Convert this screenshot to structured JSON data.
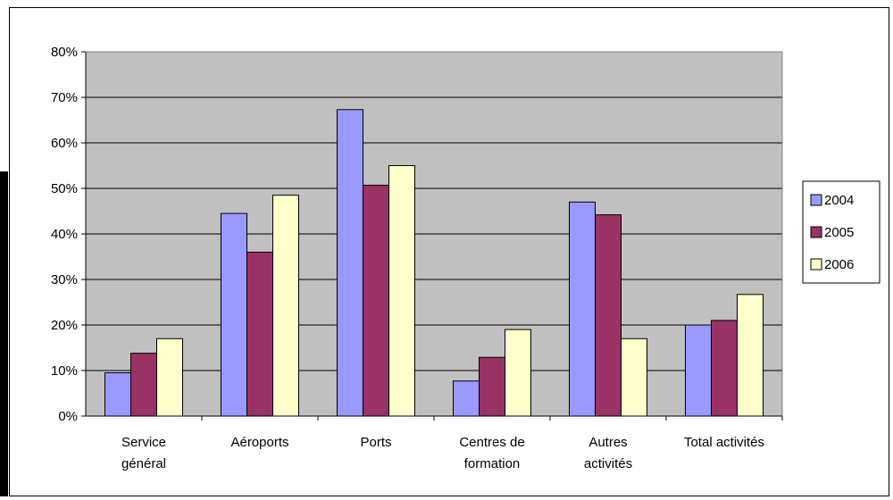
{
  "chart_data": {
    "type": "bar",
    "categories": [
      [
        "Service",
        "général"
      ],
      [
        "Aéroports"
      ],
      [
        "Ports"
      ],
      [
        "Centres de",
        "formation"
      ],
      [
        "Autres",
        "activités"
      ],
      [
        "Total activités"
      ]
    ],
    "series": [
      {
        "name": "2004",
        "color": "#9999ff",
        "values": [
          9.5,
          44.5,
          67.3,
          7.7,
          47.0,
          20.0
        ]
      },
      {
        "name": "2005",
        "color": "#993366",
        "values": [
          13.8,
          36.0,
          50.7,
          12.9,
          44.2,
          21.0
        ]
      },
      {
        "name": "2006",
        "color": "#ffffcc",
        "values": [
          17.0,
          48.5,
          55.0,
          19.0,
          17.0,
          26.7
        ]
      }
    ],
    "ylim": [
      0,
      80
    ],
    "yticks": [
      "0%",
      "10%",
      "20%",
      "30%",
      "40%",
      "50%",
      "60%",
      "70%",
      "80%"
    ],
    "plot_background": "#c0c0c0",
    "grid": true,
    "legend_position": "right"
  }
}
